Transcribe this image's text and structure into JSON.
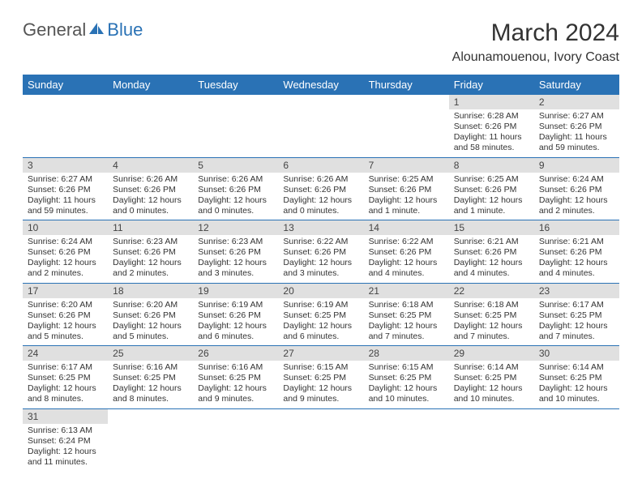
{
  "logo": {
    "part1": "General",
    "part2": "Blue"
  },
  "title": "March 2024",
  "location": "Alounamouenou, Ivory Coast",
  "colors": {
    "header_bg": "#2a72b5",
    "header_fg": "#ffffff",
    "daynum_bg": "#e0e0e0",
    "row_border": "#2a72b5",
    "text": "#333333"
  },
  "columns": [
    "Sunday",
    "Monday",
    "Tuesday",
    "Wednesday",
    "Thursday",
    "Friday",
    "Saturday"
  ],
  "weeks": [
    [
      null,
      null,
      null,
      null,
      null,
      {
        "n": "1",
        "sr": "Sunrise: 6:28 AM",
        "ss": "Sunset: 6:26 PM",
        "dl": "Daylight: 11 hours and 58 minutes."
      },
      {
        "n": "2",
        "sr": "Sunrise: 6:27 AM",
        "ss": "Sunset: 6:26 PM",
        "dl": "Daylight: 11 hours and 59 minutes."
      }
    ],
    [
      {
        "n": "3",
        "sr": "Sunrise: 6:27 AM",
        "ss": "Sunset: 6:26 PM",
        "dl": "Daylight: 11 hours and 59 minutes."
      },
      {
        "n": "4",
        "sr": "Sunrise: 6:26 AM",
        "ss": "Sunset: 6:26 PM",
        "dl": "Daylight: 12 hours and 0 minutes."
      },
      {
        "n": "5",
        "sr": "Sunrise: 6:26 AM",
        "ss": "Sunset: 6:26 PM",
        "dl": "Daylight: 12 hours and 0 minutes."
      },
      {
        "n": "6",
        "sr": "Sunrise: 6:26 AM",
        "ss": "Sunset: 6:26 PM",
        "dl": "Daylight: 12 hours and 0 minutes."
      },
      {
        "n": "7",
        "sr": "Sunrise: 6:25 AM",
        "ss": "Sunset: 6:26 PM",
        "dl": "Daylight: 12 hours and 1 minute."
      },
      {
        "n": "8",
        "sr": "Sunrise: 6:25 AM",
        "ss": "Sunset: 6:26 PM",
        "dl": "Daylight: 12 hours and 1 minute."
      },
      {
        "n": "9",
        "sr": "Sunrise: 6:24 AM",
        "ss": "Sunset: 6:26 PM",
        "dl": "Daylight: 12 hours and 2 minutes."
      }
    ],
    [
      {
        "n": "10",
        "sr": "Sunrise: 6:24 AM",
        "ss": "Sunset: 6:26 PM",
        "dl": "Daylight: 12 hours and 2 minutes."
      },
      {
        "n": "11",
        "sr": "Sunrise: 6:23 AM",
        "ss": "Sunset: 6:26 PM",
        "dl": "Daylight: 12 hours and 2 minutes."
      },
      {
        "n": "12",
        "sr": "Sunrise: 6:23 AM",
        "ss": "Sunset: 6:26 PM",
        "dl": "Daylight: 12 hours and 3 minutes."
      },
      {
        "n": "13",
        "sr": "Sunrise: 6:22 AM",
        "ss": "Sunset: 6:26 PM",
        "dl": "Daylight: 12 hours and 3 minutes."
      },
      {
        "n": "14",
        "sr": "Sunrise: 6:22 AM",
        "ss": "Sunset: 6:26 PM",
        "dl": "Daylight: 12 hours and 4 minutes."
      },
      {
        "n": "15",
        "sr": "Sunrise: 6:21 AM",
        "ss": "Sunset: 6:26 PM",
        "dl": "Daylight: 12 hours and 4 minutes."
      },
      {
        "n": "16",
        "sr": "Sunrise: 6:21 AM",
        "ss": "Sunset: 6:26 PM",
        "dl": "Daylight: 12 hours and 4 minutes."
      }
    ],
    [
      {
        "n": "17",
        "sr": "Sunrise: 6:20 AM",
        "ss": "Sunset: 6:26 PM",
        "dl": "Daylight: 12 hours and 5 minutes."
      },
      {
        "n": "18",
        "sr": "Sunrise: 6:20 AM",
        "ss": "Sunset: 6:26 PM",
        "dl": "Daylight: 12 hours and 5 minutes."
      },
      {
        "n": "19",
        "sr": "Sunrise: 6:19 AM",
        "ss": "Sunset: 6:26 PM",
        "dl": "Daylight: 12 hours and 6 minutes."
      },
      {
        "n": "20",
        "sr": "Sunrise: 6:19 AM",
        "ss": "Sunset: 6:25 PM",
        "dl": "Daylight: 12 hours and 6 minutes."
      },
      {
        "n": "21",
        "sr": "Sunrise: 6:18 AM",
        "ss": "Sunset: 6:25 PM",
        "dl": "Daylight: 12 hours and 7 minutes."
      },
      {
        "n": "22",
        "sr": "Sunrise: 6:18 AM",
        "ss": "Sunset: 6:25 PM",
        "dl": "Daylight: 12 hours and 7 minutes."
      },
      {
        "n": "23",
        "sr": "Sunrise: 6:17 AM",
        "ss": "Sunset: 6:25 PM",
        "dl": "Daylight: 12 hours and 7 minutes."
      }
    ],
    [
      {
        "n": "24",
        "sr": "Sunrise: 6:17 AM",
        "ss": "Sunset: 6:25 PM",
        "dl": "Daylight: 12 hours and 8 minutes."
      },
      {
        "n": "25",
        "sr": "Sunrise: 6:16 AM",
        "ss": "Sunset: 6:25 PM",
        "dl": "Daylight: 12 hours and 8 minutes."
      },
      {
        "n": "26",
        "sr": "Sunrise: 6:16 AM",
        "ss": "Sunset: 6:25 PM",
        "dl": "Daylight: 12 hours and 9 minutes."
      },
      {
        "n": "27",
        "sr": "Sunrise: 6:15 AM",
        "ss": "Sunset: 6:25 PM",
        "dl": "Daylight: 12 hours and 9 minutes."
      },
      {
        "n": "28",
        "sr": "Sunrise: 6:15 AM",
        "ss": "Sunset: 6:25 PM",
        "dl": "Daylight: 12 hours and 10 minutes."
      },
      {
        "n": "29",
        "sr": "Sunrise: 6:14 AM",
        "ss": "Sunset: 6:25 PM",
        "dl": "Daylight: 12 hours and 10 minutes."
      },
      {
        "n": "30",
        "sr": "Sunrise: 6:14 AM",
        "ss": "Sunset: 6:25 PM",
        "dl": "Daylight: 12 hours and 10 minutes."
      }
    ],
    [
      {
        "n": "31",
        "sr": "Sunrise: 6:13 AM",
        "ss": "Sunset: 6:24 PM",
        "dl": "Daylight: 12 hours and 11 minutes."
      },
      null,
      null,
      null,
      null,
      null,
      null
    ]
  ]
}
